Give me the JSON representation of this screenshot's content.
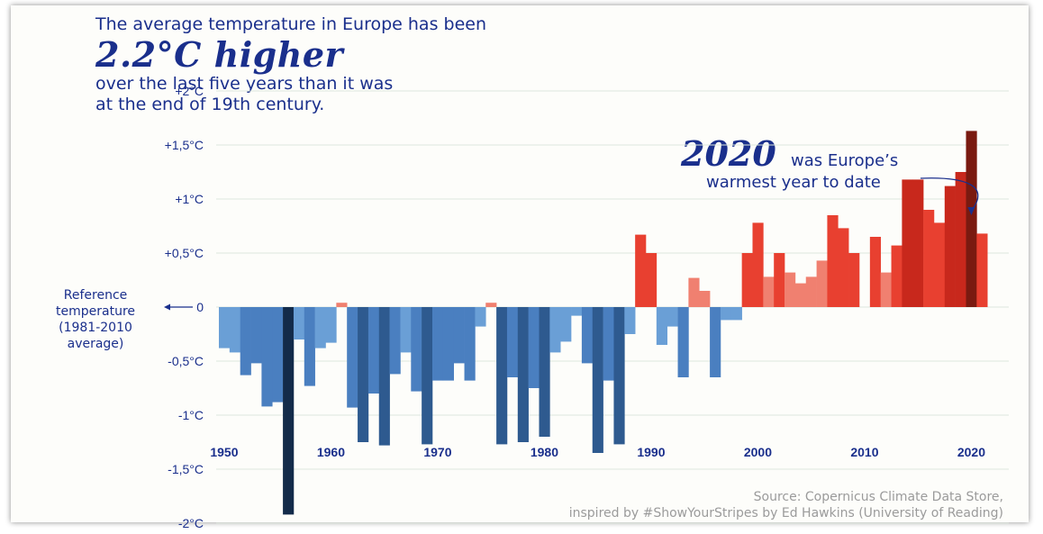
{
  "headline": {
    "line1": "The average temperature in Europe has been",
    "big": "2.2°C higher",
    "line3": "over the last five years than it was",
    "line4": "at the end of 19th century."
  },
  "annotation": {
    "year": "2020",
    "text1": "was Europe’s",
    "text2": "warmest year to date"
  },
  "reference_label": [
    "Reference",
    "temperature",
    "(1981-2010",
    "average)"
  ],
  "source": {
    "line1": "Source: Copernicus Climate Data Store,",
    "line2": "inspired by #ShowYourStripes by Ed Hawkins (University of Reading)"
  },
  "colors": {
    "text": "#1a2f8c",
    "neg_light": "#6a9fd6",
    "neg_mid": "#4a7fc0",
    "neg_dark": "#2e5a8f",
    "neg_darkest": "#132b4a",
    "pos_light": "#f08070",
    "pos_mid": "#e84030",
    "pos_dark": "#c8281c",
    "pos_darkest": "#7a1a10"
  },
  "chart_data": {
    "type": "bar",
    "ylabel": "",
    "xlabel": "",
    "ylim": [
      -2,
      2
    ],
    "yticks": [
      {
        "value": 2,
        "label": "+2°C"
      },
      {
        "value": 1.5,
        "label": "+1,5°C"
      },
      {
        "value": 1,
        "label": "+1°C"
      },
      {
        "value": 0.5,
        "label": "+0,5°C"
      },
      {
        "value": 0,
        "label": "0"
      },
      {
        "value": -0.5,
        "label": "-0,5°C"
      },
      {
        "value": -1,
        "label": "-1°C"
      },
      {
        "value": -1.5,
        "label": "-1,5°C"
      },
      {
        "value": -2,
        "label": "-2°C"
      }
    ],
    "xticks": [
      1950,
      1960,
      1970,
      1980,
      1990,
      2000,
      2010,
      2020
    ],
    "years": [
      1950,
      1951,
      1952,
      1953,
      1954,
      1955,
      1956,
      1957,
      1958,
      1959,
      1960,
      1961,
      1962,
      1963,
      1964,
      1965,
      1966,
      1967,
      1968,
      1969,
      1970,
      1971,
      1972,
      1973,
      1974,
      1975,
      1976,
      1977,
      1978,
      1979,
      1980,
      1981,
      1982,
      1983,
      1984,
      1985,
      1986,
      1987,
      1988,
      1989,
      1990,
      1991,
      1992,
      1993,
      1994,
      1995,
      1996,
      1997,
      1998,
      1999,
      2000,
      2001,
      2002,
      2003,
      2004,
      2005,
      2006,
      2007,
      2008,
      2009,
      2010,
      2011,
      2012,
      2013,
      2014,
      2015,
      2016,
      2017,
      2018,
      2019,
      2020,
      2021
    ],
    "values": [
      -0.38,
      -0.42,
      -0.63,
      -0.52,
      -0.92,
      -0.88,
      -1.92,
      -0.3,
      -0.73,
      -0.38,
      -0.33,
      0.04,
      -0.93,
      -1.25,
      -0.8,
      -1.28,
      -0.62,
      -0.42,
      -0.78,
      -1.27,
      -0.68,
      -0.68,
      -0.52,
      -0.68,
      -0.18,
      0.04,
      -1.27,
      -0.65,
      -1.25,
      -0.75,
      -1.2,
      -0.42,
      -0.32,
      -0.08,
      -0.52,
      -1.35,
      -0.68,
      -1.27,
      -0.25,
      0.67,
      0.5,
      -0.35,
      -0.18,
      -0.65,
      0.27,
      0.15,
      -0.65,
      -0.12,
      -0.12,
      0.5,
      0.78,
      0.28,
      0.5,
      0.32,
      0.22,
      0.28,
      0.43,
      0.85,
      0.73,
      0.5,
      0.0,
      0.65,
      0.32,
      0.57,
      1.18,
      1.18,
      0.9,
      0.78,
      1.12,
      1.25,
      1.63,
      0.68
    ]
  }
}
